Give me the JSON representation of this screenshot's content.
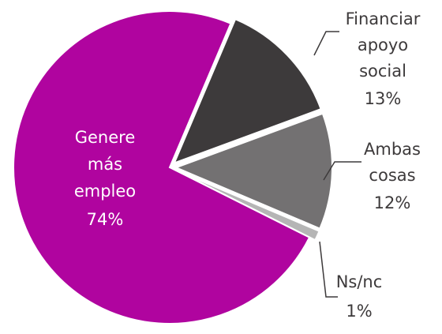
{
  "chart_data": {
    "type": "pie",
    "categories": [
      "Financiar apoyo social",
      "Ambas cosas",
      "Ns/nc",
      "Genere más empleo"
    ],
    "values": [
      13,
      12,
      1,
      74
    ],
    "value_labels": [
      "13%",
      "12%",
      "1%",
      "74%"
    ],
    "colors": [
      "#3d3a3b",
      "#737172",
      "#b5b5b5",
      "#b0049f"
    ]
  }
}
